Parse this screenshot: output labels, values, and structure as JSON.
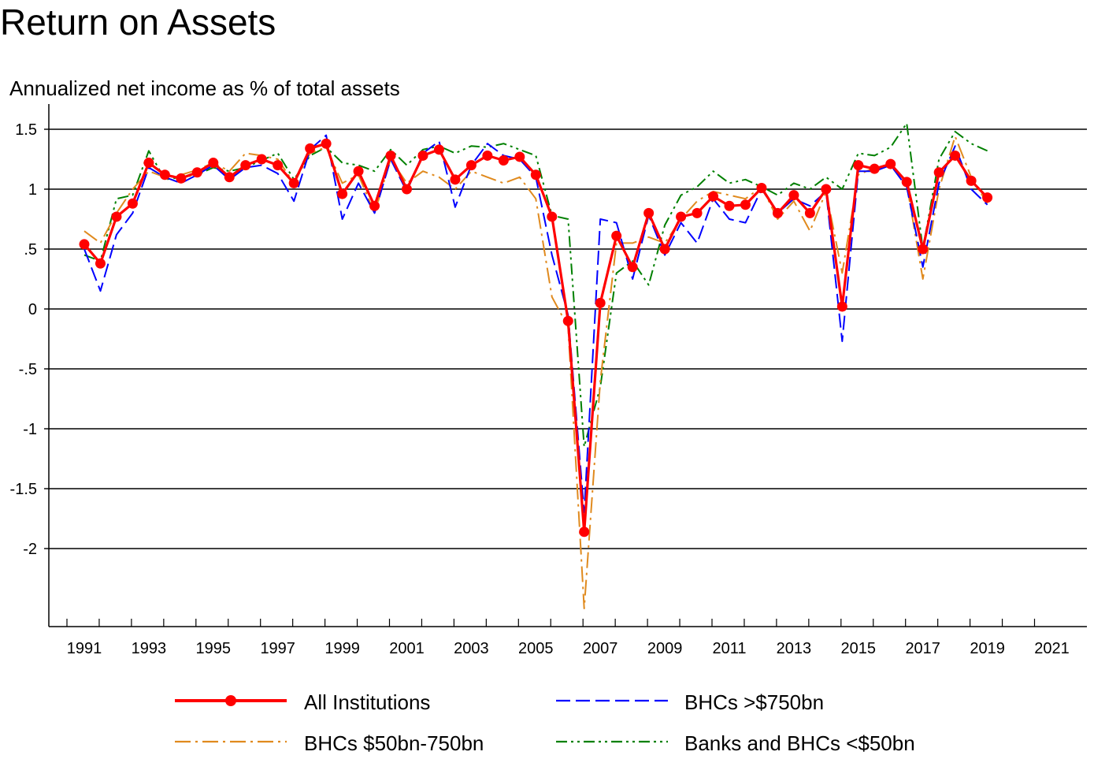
{
  "chart_data": {
    "type": "line",
    "title": "Return on Assets",
    "subtitle": "Annualized net income as % of total assets",
    "ylim": [
      -2.6,
      1.7
    ],
    "y_ticks": [
      {
        "value": 1.5,
        "label": "1.5"
      },
      {
        "value": 1.0,
        "label": "1"
      },
      {
        "value": 0.5,
        "label": ".5"
      },
      {
        "value": 0.0,
        "label": "0"
      },
      {
        "value": -0.5,
        "label": "-.5"
      },
      {
        "value": -1.0,
        "label": "-1"
      },
      {
        "value": -1.5,
        "label": "-1.5"
      },
      {
        "value": -2.0,
        "label": "-2"
      }
    ],
    "xlim": [
      1990.75,
      2022.5
    ],
    "x_tick_labels": [
      "1991",
      "1993",
      "1995",
      "1997",
      "1999",
      "2001",
      "2003",
      "2005",
      "2007",
      "2009",
      "2011",
      "2013",
      "2015",
      "2017",
      "2019",
      "2021"
    ],
    "grid": true,
    "legend_position": "bottom",
    "x_start": 1991.0,
    "x_step": 0.5,
    "series": [
      {
        "name": "All Institutions",
        "color": "#ff0000",
        "style": "solid-markers",
        "values": [
          0.54,
          0.38,
          0.77,
          0.88,
          1.22,
          1.12,
          1.09,
          1.14,
          1.22,
          1.1,
          1.2,
          1.25,
          1.2,
          1.05,
          1.34,
          1.38,
          0.96,
          1.15,
          0.86,
          1.28,
          1.0,
          1.28,
          1.33,
          1.08,
          1.2,
          1.28,
          1.24,
          1.27,
          1.12,
          0.77,
          -0.1,
          -1.86,
          0.05,
          0.61,
          0.35,
          0.8,
          0.5,
          0.77,
          0.8,
          0.94,
          0.86,
          0.87,
          1.01,
          0.8,
          0.95,
          0.8,
          1.0,
          0.02,
          1.2,
          1.17,
          1.21,
          1.06,
          0.5,
          1.14,
          1.28,
          1.07,
          0.93
        ]
      },
      {
        "name": "BHCs >$750bn",
        "color": "#0000ff",
        "style": "dashed",
        "values": [
          0.5,
          0.15,
          0.62,
          0.8,
          1.18,
          1.1,
          1.05,
          1.12,
          1.2,
          1.08,
          1.18,
          1.2,
          1.13,
          0.9,
          1.33,
          1.45,
          0.75,
          1.05,
          0.8,
          1.25,
          0.98,
          1.3,
          1.4,
          0.85,
          1.2,
          1.38,
          1.28,
          1.25,
          1.1,
          0.45,
          -0.05,
          -1.7,
          0.75,
          0.72,
          0.25,
          0.78,
          0.45,
          0.72,
          0.55,
          0.92,
          0.75,
          0.72,
          1.0,
          0.8,
          0.92,
          0.86,
          0.98,
          -0.27,
          1.15,
          1.15,
          1.2,
          1.02,
          0.35,
          1.05,
          1.36,
          1.0,
          0.87
        ]
      },
      {
        "name": "BHCs $50bn-750bn",
        "color": "#e08a1e",
        "style": "dash-dot",
        "values": [
          0.65,
          0.55,
          0.8,
          1.0,
          1.15,
          1.1,
          1.12,
          1.16,
          1.22,
          1.15,
          1.3,
          1.28,
          1.25,
          1.05,
          1.3,
          1.35,
          1.05,
          1.12,
          0.8,
          1.25,
          1.05,
          1.15,
          1.1,
          1.0,
          1.15,
          1.1,
          1.05,
          1.1,
          0.92,
          0.1,
          -0.15,
          -2.5,
          -0.6,
          0.55,
          0.55,
          0.6,
          0.55,
          0.75,
          0.9,
          0.98,
          0.95,
          0.92,
          1.02,
          0.75,
          0.9,
          0.65,
          0.98,
          0.3,
          1.12,
          1.18,
          1.2,
          1.04,
          0.25,
          1.0,
          1.44,
          1.1,
          0.88
        ]
      },
      {
        "name": "Banks and BHCs <$50bn",
        "color": "#008000",
        "style": "dash-dot-dot",
        "values": [
          0.45,
          0.4,
          0.92,
          0.95,
          1.32,
          1.08,
          1.1,
          1.12,
          1.18,
          1.15,
          1.18,
          1.24,
          1.3,
          1.08,
          1.28,
          1.35,
          1.22,
          1.2,
          1.15,
          1.33,
          1.2,
          1.33,
          1.36,
          1.3,
          1.36,
          1.35,
          1.38,
          1.33,
          1.28,
          0.78,
          0.75,
          -1.15,
          -0.65,
          0.3,
          0.4,
          0.2,
          0.7,
          0.95,
          1.02,
          1.15,
          1.05,
          1.08,
          1.02,
          0.95,
          1.05,
          1.0,
          1.1,
          1.0,
          1.3,
          1.28,
          1.35,
          1.55,
          0.5,
          1.25,
          1.48,
          1.38,
          1.32
        ]
      }
    ]
  }
}
